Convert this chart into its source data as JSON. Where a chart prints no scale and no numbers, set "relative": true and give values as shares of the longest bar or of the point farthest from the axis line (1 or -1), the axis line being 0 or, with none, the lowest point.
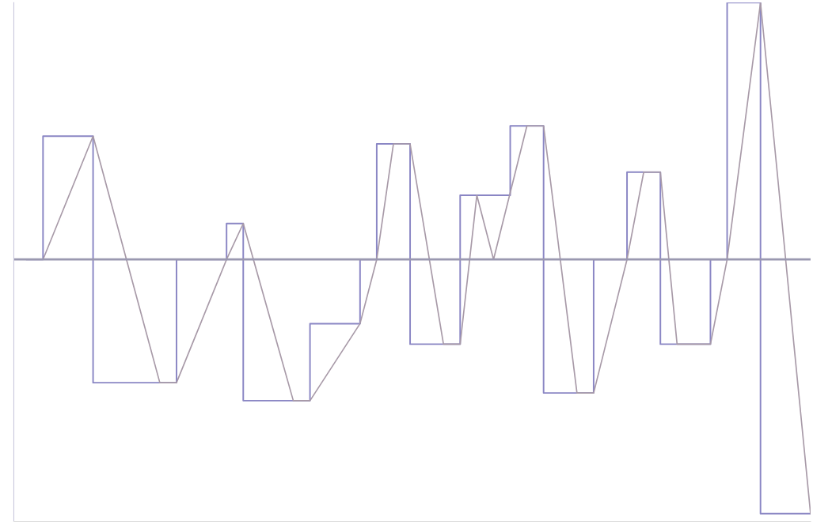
{
  "chart_data": {
    "type": "line",
    "relative": true,
    "categories": [
      null,
      null,
      null,
      null,
      null,
      null,
      null,
      null,
      null,
      null,
      null,
      null,
      null,
      null,
      null,
      null,
      null,
      null,
      null,
      null,
      null,
      null,
      null,
      null,
      null,
      null,
      null,
      null,
      null,
      null,
      null,
      null,
      null,
      null,
      null,
      null,
      null,
      null,
      null,
      null,
      null,
      null,
      null,
      null,
      null,
      null,
      null,
      null
    ],
    "series": [
      {
        "type": "step",
        "color": "#8a86c4",
        "values": [
          0,
          0.48,
          0.48,
          0.48,
          -0.48,
          -0.48,
          -0.48,
          -0.48,
          -0.48,
          0,
          0,
          0,
          0.14,
          -0.55,
          -0.55,
          -0.55,
          -0.55,
          -0.25,
          -0.25,
          -0.25,
          0,
          0.45,
          0.45,
          -0.33,
          -0.33,
          -0.33,
          0.25,
          0.25,
          0.25,
          0.52,
          0.52,
          -0.52,
          -0.52,
          -0.52,
          0,
          0,
          0.34,
          0.34,
          -0.33,
          -0.33,
          -0.33,
          0,
          1,
          1,
          -0.99,
          -0.99,
          -0.99,
          -0.99
        ]
      },
      {
        "color": "#a89aa8",
        "values": [
          null,
          0,
          0.16,
          0.32,
          0.48,
          0.24,
          0,
          -0.24,
          -0.48,
          -0.48,
          -0.32,
          -0.16,
          0,
          0.14,
          -0.09,
          -0.32,
          -0.55,
          -0.55,
          -0.45,
          -0.35,
          -0.25,
          0,
          0.45,
          0.45,
          0.06,
          -0.33,
          -0.33,
          0.25,
          0,
          0.26,
          0.52,
          0.52,
          0,
          -0.52,
          -0.52,
          -0.26,
          0,
          0.34,
          0.34,
          -0.33,
          -0.33,
          -0.33,
          0,
          0.5,
          1,
          0.34,
          -0.33,
          -0.99
        ]
      }
    ]
  }
}
